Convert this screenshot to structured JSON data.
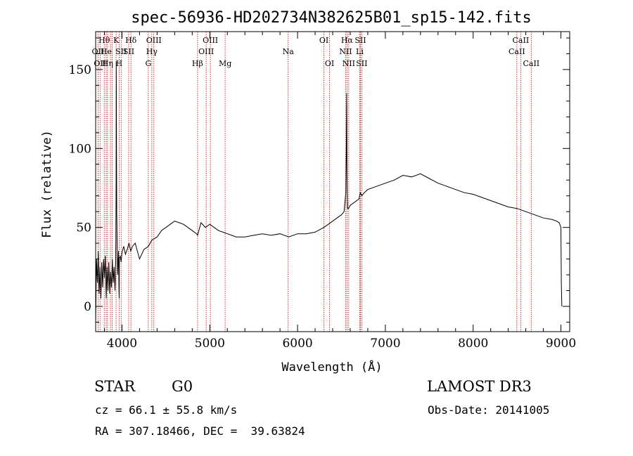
{
  "chart_data": {
    "type": "line",
    "title": "spec-56936-HD202734N382625B01_sp15-142.fits",
    "xlabel": "Wavelength (Å)",
    "ylabel": "Flux (relative)",
    "xlim": [
      3700,
      9100
    ],
    "ylim": [
      -16,
      174
    ],
    "xticks": [
      4000,
      5000,
      6000,
      7000,
      8000,
      9000
    ],
    "yticks": [
      0,
      50,
      100,
      150
    ],
    "series": [
      {
        "name": "spectrum",
        "x": [
          3700,
          3710,
          3720,
          3730,
          3740,
          3750,
          3760,
          3770,
          3780,
          3790,
          3800,
          3810,
          3820,
          3830,
          3840,
          3850,
          3860,
          3870,
          3880,
          3890,
          3900,
          3910,
          3920,
          3925,
          3930,
          3933,
          3935,
          3940,
          3950,
          3960,
          3966,
          3968,
          3970,
          3980,
          3990,
          4000,
          4020,
          4040,
          4060,
          4080,
          4100,
          4120,
          4150,
          4200,
          4250,
          4300,
          4340,
          4400,
          4450,
          4500,
          4550,
          4600,
          4650,
          4700,
          4750,
          4800,
          4850,
          4861,
          4900,
          4950,
          5000,
          5050,
          5100,
          5150,
          5200,
          5250,
          5300,
          5350,
          5400,
          5500,
          5600,
          5700,
          5800,
          5900,
          6000,
          6100,
          6200,
          6300,
          6350,
          6400,
          6450,
          6500,
          6530,
          6550,
          6556,
          6560,
          6563,
          6566,
          6570,
          6580,
          6600,
          6650,
          6700,
          6716,
          6731,
          6760,
          6800,
          6900,
          7000,
          7100,
          7200,
          7300,
          7400,
          7500,
          7600,
          7700,
          7800,
          7900,
          8000,
          8100,
          8200,
          8300,
          8400,
          8500,
          8600,
          8700,
          8800,
          8900,
          8950,
          8980,
          9000,
          9005,
          9010
        ],
        "y": [
          -10,
          30,
          15,
          35,
          8,
          25,
          5,
          28,
          12,
          30,
          18,
          32,
          5,
          25,
          10,
          28,
          8,
          22,
          12,
          30,
          15,
          25,
          10,
          20,
          40,
          80,
          155,
          60,
          20,
          35,
          10,
          5,
          30,
          32,
          28,
          34,
          38,
          33,
          36,
          40,
          35,
          38,
          40,
          30,
          36,
          38,
          42,
          44,
          48,
          50,
          52,
          54,
          53,
          52,
          50,
          48,
          46,
          45,
          53,
          50,
          52,
          50,
          48,
          47,
          46,
          45,
          44,
          44,
          44,
          45,
          46,
          45,
          46,
          44,
          46,
          46,
          47,
          50,
          52,
          54,
          56,
          58,
          60,
          72,
          103,
          135,
          90,
          70,
          62,
          62,
          64,
          66,
          68,
          72,
          70,
          72,
          74,
          76,
          78,
          80,
          83,
          82,
          84,
          81,
          78,
          76,
          74,
          72,
          71,
          69,
          67,
          65,
          63,
          62,
          60,
          58,
          56,
          55,
          54,
          53,
          50,
          15,
          0
        ]
      }
    ],
    "line_markers": [
      {
        "wl": 3727,
        "label": "OII",
        "row": 1
      },
      {
        "wl": 3750,
        "label": "OII",
        "row": 2
      },
      {
        "wl": 3798,
        "label": "Hθ",
        "row": 0
      },
      {
        "wl": 3820,
        "label": "He",
        "row": 1
      },
      {
        "wl": 3835,
        "label": "Hη",
        "row": 2
      },
      {
        "wl": 3869,
        "label": "",
        "row": 1
      },
      {
        "wl": 3889,
        "label": "",
        "row": 1
      },
      {
        "wl": 3933,
        "label": "K",
        "row": 0
      },
      {
        "wl": 3968,
        "label": "H",
        "row": 2
      },
      {
        "wl": 3990,
        "label": "SII",
        "row": 1
      },
      {
        "wl": 4102,
        "label": "Hδ",
        "row": 0
      },
      {
        "wl": 4076,
        "label": "SII",
        "row": 1
      },
      {
        "wl": 4300,
        "label": "G",
        "row": 2
      },
      {
        "wl": 4340,
        "label": "Hγ",
        "row": 1
      },
      {
        "wl": 4363,
        "label": "OIII",
        "row": 0
      },
      {
        "wl": 4861,
        "label": "Hβ",
        "row": 2
      },
      {
        "wl": 4959,
        "label": "OIII",
        "row": 1
      },
      {
        "wl": 5007,
        "label": "OIII",
        "row": 0
      },
      {
        "wl": 5175,
        "label": "Mg",
        "row": 2
      },
      {
        "wl": 5893,
        "label": "Na",
        "row": 1
      },
      {
        "wl": 6300,
        "label": "OI",
        "row": 0
      },
      {
        "wl": 6364,
        "label": "OI",
        "row": 2
      },
      {
        "wl": 6548,
        "label": "NII",
        "row": 1
      },
      {
        "wl": 6563,
        "label": "Hα",
        "row": 0
      },
      {
        "wl": 6583,
        "label": "NII",
        "row": 2
      },
      {
        "wl": 6708,
        "label": "Li",
        "row": 1
      },
      {
        "wl": 6716,
        "label": "SII",
        "row": 0
      },
      {
        "wl": 6731,
        "label": "SII",
        "row": 2
      },
      {
        "wl": 8498,
        "label": "CaII",
        "row": 1
      },
      {
        "wl": 8542,
        "label": "CaII",
        "row": 0
      },
      {
        "wl": 8662,
        "label": "CaII",
        "row": 2
      }
    ]
  },
  "info": {
    "object_class": "STAR",
    "subclass": "G0",
    "survey": "LAMOST DR3",
    "velocity": "cz = 66.1 ± 55.8 km/s",
    "obs_date": "Obs-Date: 20141005",
    "coords": "RA = 307.18466, DEC =  39.63824"
  },
  "colors": {
    "line_marker": "#cc0000",
    "spectrum": "#000000",
    "axes": "#000000"
  }
}
